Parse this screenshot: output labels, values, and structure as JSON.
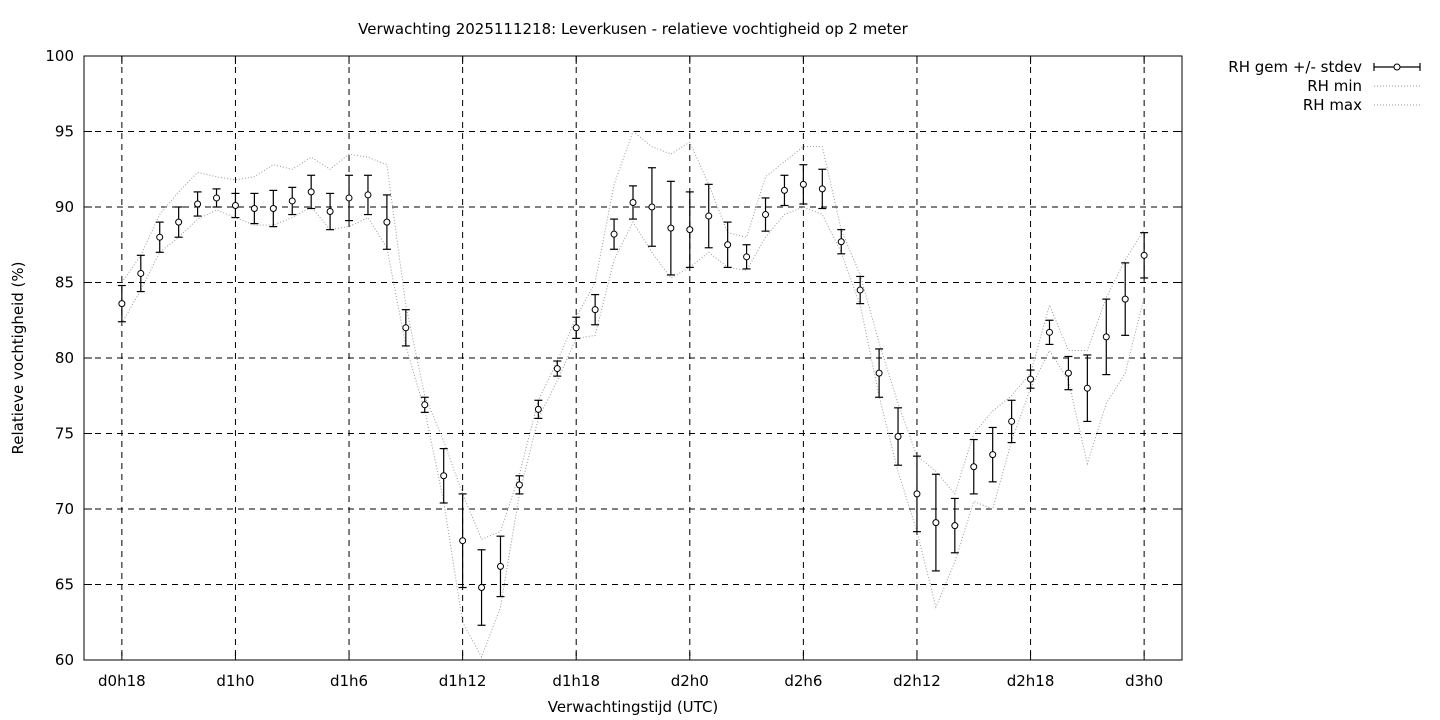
{
  "chart_data": {
    "type": "line",
    "title": "Verwachting 2025111218: Leverkusen - relatieve vochtigheid op 2 meter",
    "xlabel": "Verwachtingstijd (UTC)",
    "ylabel": "Relatieve vochtigheid (%)",
    "ylim": [
      60,
      100
    ],
    "yticks": [
      60,
      65,
      70,
      75,
      80,
      85,
      90,
      95,
      100
    ],
    "x_unit_hours": 3,
    "xlim_steps": [
      -2,
      56
    ],
    "xticks": [
      {
        "step": 0,
        "label": "d0h18"
      },
      {
        "step": 6,
        "label": "d1h0"
      },
      {
        "step": 12,
        "label": "d1h6"
      },
      {
        "step": 18,
        "label": "d1h12"
      },
      {
        "step": 24,
        "label": "d1h18"
      },
      {
        "step": 30,
        "label": "d2h0"
      },
      {
        "step": 36,
        "label": "d2h6"
      },
      {
        "step": 42,
        "label": "d2h12"
      },
      {
        "step": 48,
        "label": "d2h18"
      },
      {
        "step": 54,
        "label": "d3h0"
      }
    ],
    "grid": true,
    "legend_position": "top-right-outside",
    "series": [
      {
        "name": "RH gem +/- stdev",
        "style": "errorbars",
        "mean": [
          83.6,
          85.6,
          88.0,
          89.0,
          90.2,
          90.6,
          90.1,
          89.9,
          89.9,
          90.4,
          91.0,
          89.7,
          90.6,
          90.8,
          89.0,
          82.0,
          76.9,
          72.2,
          67.9,
          64.8,
          66.2,
          71.6,
          76.6,
          79.3,
          82.0,
          83.2,
          88.2,
          90.3,
          90.0,
          88.6,
          88.5,
          89.4,
          87.5,
          86.7,
          89.5,
          91.1,
          91.5,
          91.2,
          87.7,
          84.5,
          79.0,
          74.8,
          71.0,
          69.1,
          68.9,
          72.8,
          73.6,
          75.8,
          78.6,
          81.7,
          79.0,
          78.0,
          81.4,
          83.9,
          86.8
        ],
        "stdev": [
          1.2,
          1.2,
          1.0,
          1.0,
          0.8,
          0.6,
          0.8,
          1.0,
          1.2,
          0.9,
          1.1,
          1.2,
          1.5,
          1.3,
          1.8,
          1.2,
          0.5,
          1.8,
          3.1,
          2.5,
          2.0,
          0.6,
          0.6,
          0.5,
          0.7,
          1.0,
          1.0,
          1.1,
          2.6,
          3.1,
          2.5,
          2.1,
          1.5,
          0.8,
          1.1,
          1.0,
          1.3,
          1.3,
          0.8,
          0.9,
          1.6,
          1.9,
          2.5,
          3.2,
          1.8,
          1.8,
          1.8,
          1.4,
          0.6,
          0.8,
          1.1,
          2.2,
          2.5,
          2.4,
          1.5
        ]
      },
      {
        "name": "RH min",
        "style": "dotted",
        "values": [
          82.3,
          84.5,
          87.0,
          88.0,
          89.2,
          89.8,
          89.3,
          88.8,
          88.8,
          89.3,
          90.0,
          88.5,
          88.7,
          89.3,
          87.3,
          80.8,
          76.5,
          70.5,
          62.5,
          60.2,
          63.5,
          71.0,
          76.0,
          78.5,
          81.3,
          81.5,
          86.5,
          89.0,
          87.0,
          85.3,
          86.0,
          87.0,
          86.0,
          85.8,
          88.0,
          89.5,
          90.0,
          89.5,
          87.0,
          83.5,
          77.5,
          72.5,
          68.5,
          63.5,
          66.5,
          70.5,
          70.0,
          74.5,
          78.0,
          80.5,
          78.5,
          73.0,
          77.0,
          79.0,
          84.0
        ]
      },
      {
        "name": "RH max",
        "style": "dotted",
        "values": [
          85.0,
          86.8,
          89.5,
          91.0,
          92.3,
          92.0,
          91.8,
          92.0,
          92.8,
          92.5,
          93.3,
          92.5,
          93.5,
          93.3,
          92.8,
          83.5,
          77.5,
          74.5,
          71.0,
          68.0,
          68.5,
          72.3,
          77.2,
          79.8,
          82.7,
          85.0,
          91.5,
          95.0,
          94.0,
          93.5,
          94.3,
          91.5,
          88.3,
          88.0,
          92.0,
          93.0,
          94.0,
          94.0,
          88.5,
          85.5,
          81.0,
          77.0,
          73.5,
          72.5,
          71.0,
          75.0,
          76.5,
          77.5,
          79.0,
          83.5,
          80.5,
          80.5,
          84.0,
          86.5,
          88.5
        ]
      }
    ]
  }
}
